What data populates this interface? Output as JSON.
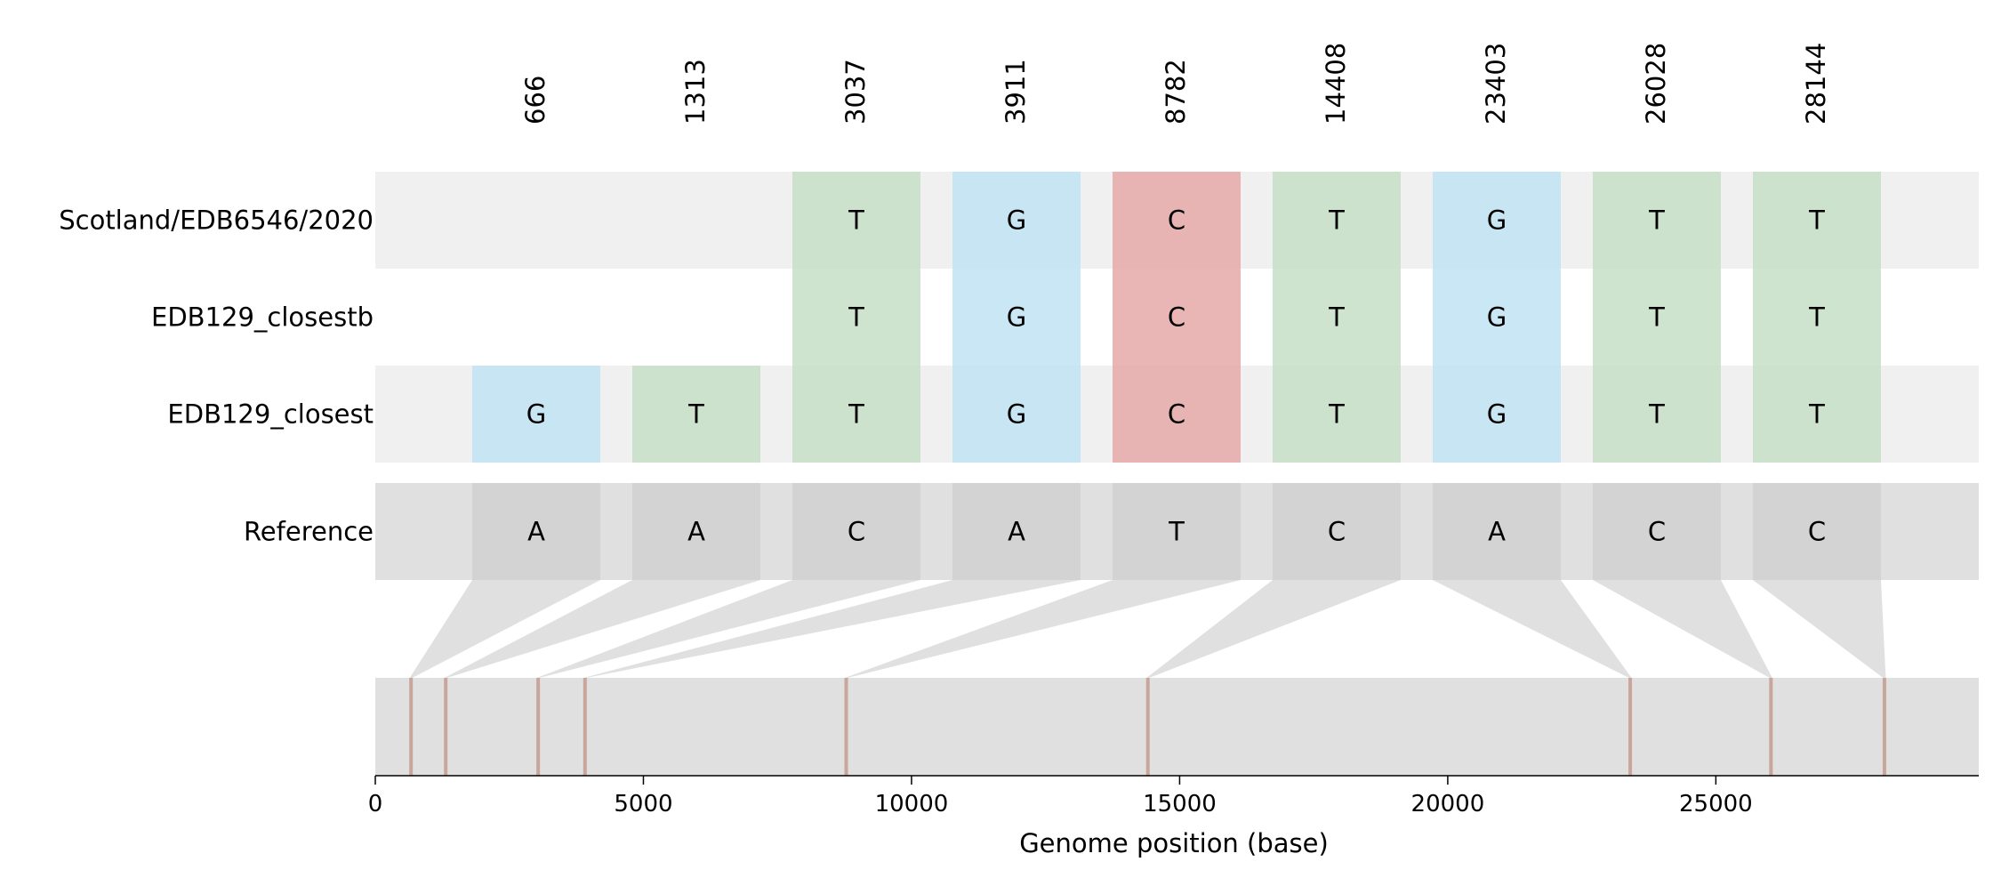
{
  "chart_data": {
    "type": "table",
    "title": "",
    "xlabel": "Genome position (base)",
    "xlim": [
      0,
      29903
    ],
    "xticks": [
      0,
      5000,
      10000,
      15000,
      20000,
      25000
    ],
    "sites": [
      666,
      1313,
      3037,
      3911,
      8782,
      14408,
      23403,
      26028,
      28144
    ],
    "reference": {
      "name": "Reference",
      "bases": [
        "A",
        "A",
        "C",
        "A",
        "T",
        "C",
        "A",
        "C",
        "C"
      ]
    },
    "sequences": [
      {
        "name": "Scotland/EDB6546/2020",
        "bases": [
          "",
          "",
          "T",
          "G",
          "C",
          "T",
          "G",
          "T",
          "T"
        ]
      },
      {
        "name": "EDB129_closestb",
        "bases": [
          "",
          "",
          "T",
          "G",
          "C",
          "T",
          "G",
          "T",
          "T"
        ]
      },
      {
        "name": "EDB129_closest",
        "bases": [
          "G",
          "T",
          "T",
          "G",
          "C",
          "T",
          "G",
          "T",
          "T"
        ]
      }
    ],
    "base_colors": {
      "A": "#e6a8a8",
      "C": "#e6a8a8",
      "G": "#bfe3f2",
      "T": "#c5dfc5"
    },
    "row_stripe_color": "#f0f0f0",
    "reference_band_color": "#e0e0e0",
    "reference_cell_color": "#d3d3d3",
    "site_marker_color": "#c9a69b",
    "grid": false
  }
}
